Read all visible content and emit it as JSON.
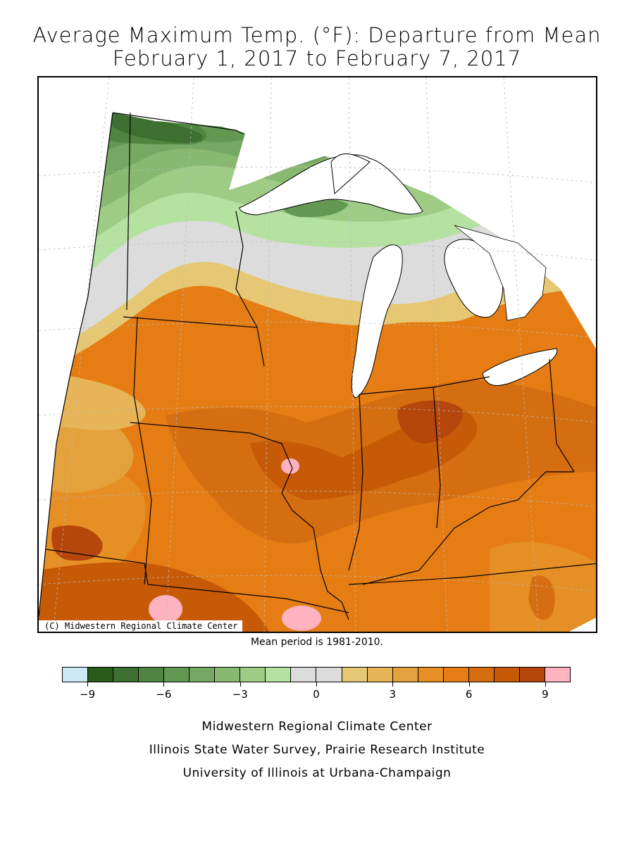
{
  "title_line1": "Average Maximum Temp. (°F): Departure from Mean",
  "title_line2": "February 1, 2017 to February 7, 2017",
  "map": {
    "copyright": "(C) Midwestern Regional Climate Center",
    "mean_note": "Mean period is 1981-2010.",
    "colors": {
      "water": "#ffffff",
      "boundary": "#000000",
      "graticule": "#bbbbbb"
    }
  },
  "legend": {
    "colors": [
      "#cce9f5",
      "#2a5a1a",
      "#3d7030",
      "#4f8540",
      "#629851",
      "#75a862",
      "#89b870",
      "#9fcc85",
      "#b5e2a1",
      "#dcdcdc",
      "#dcdcdc",
      "#e6c874",
      "#e7b557",
      "#e4a23c",
      "#e58f25",
      "#e67d14",
      "#d56e10",
      "#c65a07",
      "#b6470c",
      "#ffb3c1"
    ],
    "tick_labels": [
      "-9",
      "-6",
      "-3",
      "0",
      "3",
      "6",
      "9"
    ]
  },
  "credits": [
    "Midwestern Regional Climate Center",
    "Illinois State Water Survey, Prairie Research Institute",
    "University of Illinois at Urbana-Champaign"
  ]
}
